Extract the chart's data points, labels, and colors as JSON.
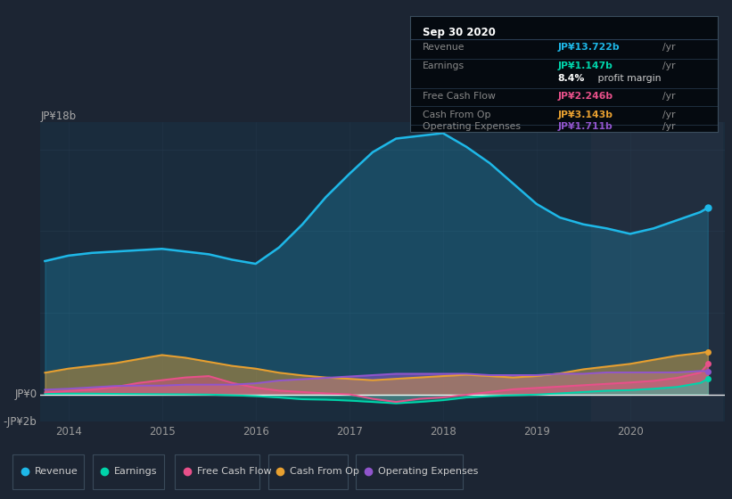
{
  "bg_color": "#1c2533",
  "plot_bg_color": "#1a2c3d",
  "grid_color": "#2a3d52",
  "x_years": [
    2013.75,
    2014.0,
    2014.25,
    2014.5,
    2014.75,
    2015.0,
    2015.25,
    2015.5,
    2015.75,
    2016.0,
    2016.25,
    2016.5,
    2016.75,
    2017.0,
    2017.25,
    2017.5,
    2017.75,
    2018.0,
    2018.25,
    2018.5,
    2018.75,
    2019.0,
    2019.25,
    2019.5,
    2019.75,
    2020.0,
    2020.25,
    2020.5,
    2020.75,
    2020.83
  ],
  "revenue": [
    9.8,
    10.2,
    10.4,
    10.5,
    10.6,
    10.7,
    10.5,
    10.3,
    9.9,
    9.6,
    10.8,
    12.5,
    14.5,
    16.2,
    17.8,
    18.8,
    19.0,
    19.2,
    18.2,
    17.0,
    15.5,
    14.0,
    13.0,
    12.5,
    12.2,
    11.8,
    12.2,
    12.8,
    13.4,
    13.72
  ],
  "earnings": [
    0.05,
    0.06,
    0.06,
    0.04,
    0.03,
    0.02,
    0.01,
    -0.01,
    -0.06,
    -0.12,
    -0.22,
    -0.35,
    -0.38,
    -0.45,
    -0.55,
    -0.65,
    -0.55,
    -0.42,
    -0.22,
    -0.12,
    -0.06,
    -0.01,
    0.08,
    0.18,
    0.28,
    0.32,
    0.42,
    0.55,
    0.85,
    1.147
  ],
  "free_cash_flow": [
    0.15,
    0.25,
    0.35,
    0.55,
    0.85,
    1.05,
    1.25,
    1.35,
    0.85,
    0.5,
    0.28,
    0.18,
    0.08,
    0.01,
    -0.32,
    -0.55,
    -0.32,
    -0.22,
    -0.02,
    0.18,
    0.38,
    0.48,
    0.58,
    0.68,
    0.78,
    0.88,
    1.0,
    1.22,
    1.6,
    2.246
  ],
  "cash_from_op": [
    1.6,
    1.9,
    2.1,
    2.3,
    2.6,
    2.9,
    2.7,
    2.4,
    2.1,
    1.9,
    1.6,
    1.4,
    1.25,
    1.15,
    1.05,
    1.15,
    1.25,
    1.35,
    1.45,
    1.35,
    1.25,
    1.35,
    1.55,
    1.85,
    2.05,
    2.25,
    2.55,
    2.85,
    3.05,
    3.143
  ],
  "operating_expenses": [
    0.35,
    0.42,
    0.52,
    0.62,
    0.65,
    0.65,
    0.72,
    0.72,
    0.72,
    0.82,
    1.02,
    1.12,
    1.22,
    1.32,
    1.42,
    1.52,
    1.52,
    1.52,
    1.52,
    1.42,
    1.42,
    1.42,
    1.52,
    1.52,
    1.62,
    1.62,
    1.62,
    1.62,
    1.72,
    1.711
  ],
  "ylim": [
    -2,
    20
  ],
  "ylim_display": [
    -2,
    18
  ],
  "xtick_vals": [
    2014,
    2015,
    2016,
    2017,
    2018,
    2019,
    2020
  ],
  "revenue_color": "#1eb8e8",
  "earnings_color": "#00d4aa",
  "free_cash_flow_color": "#e8508a",
  "cash_from_op_color": "#e8a030",
  "operating_expenses_color": "#9055cc",
  "tooltip": {
    "date": "Sep 30 2020",
    "revenue_val": "JP¥13.722b",
    "earnings_val": "JP¥1.147b",
    "profit_margin": "8.4%",
    "fcf_val": "JP¥2.246b",
    "cash_op_val": "JP¥3.143b",
    "op_exp_val": "JP¥1.711b"
  },
  "legend_items": [
    {
      "label": "Revenue",
      "color": "#1eb8e8"
    },
    {
      "label": "Earnings",
      "color": "#00d4aa"
    },
    {
      "label": "Free Cash Flow",
      "color": "#e8508a"
    },
    {
      "label": "Cash From Op",
      "color": "#e8a030"
    },
    {
      "label": "Operating Expenses",
      "color": "#9055cc"
    }
  ]
}
